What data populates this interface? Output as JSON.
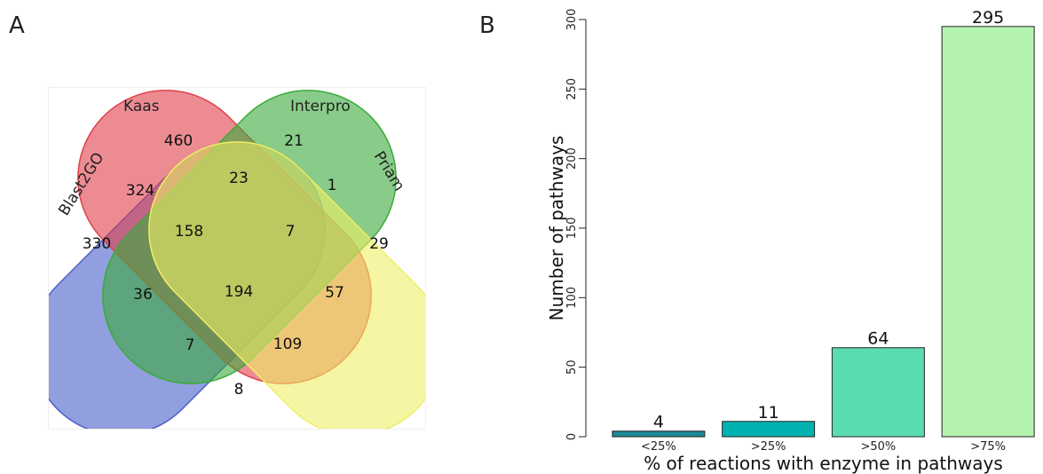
{
  "panels": {
    "a": "A",
    "b": "B"
  },
  "chart_data": [
    {
      "type": "venn",
      "sets": [
        "Blast2GO",
        "Kaas",
        "Interpro",
        "Priam"
      ],
      "set_colors": [
        "#4a5fc8",
        "#e0404a",
        "#3aaa3a",
        "#eeee66"
      ],
      "regions": [
        {
          "sets": [
            "Blast2GO"
          ],
          "value": 330
        },
        {
          "sets": [
            "Kaas"
          ],
          "value": 460
        },
        {
          "sets": [
            "Interpro"
          ],
          "value": 21
        },
        {
          "sets": [
            "Priam"
          ],
          "value": 29
        },
        {
          "sets": [
            "Blast2GO",
            "Kaas"
          ],
          "value": 324
        },
        {
          "sets": [
            "Kaas",
            "Interpro"
          ],
          "value": 23
        },
        {
          "sets": [
            "Interpro",
            "Priam"
          ],
          "value": 1
        },
        {
          "sets": [
            "Blast2GO",
            "Interpro"
          ],
          "value": 36
        },
        {
          "sets": [
            "Kaas",
            "Priam"
          ],
          "value": 57
        },
        {
          "sets": [
            "Blast2GO",
            "Priam"
          ],
          "value": 8
        },
        {
          "sets": [
            "Blast2GO",
            "Kaas",
            "Interpro"
          ],
          "value": 158
        },
        {
          "sets": [
            "Kaas",
            "Interpro",
            "Priam"
          ],
          "value": 7
        },
        {
          "sets": [
            "Blast2GO",
            "Interpro",
            "Priam"
          ],
          "value": 7
        },
        {
          "sets": [
            "Blast2GO",
            "Kaas",
            "Priam"
          ],
          "value": 109
        },
        {
          "sets": [
            "Blast2GO",
            "Kaas",
            "Interpro",
            "Priam"
          ],
          "value": 194
        }
      ]
    },
    {
      "type": "bar",
      "categories": [
        "<25%",
        ">25%",
        ">50%",
        ">75%"
      ],
      "values": [
        4,
        11,
        64,
        295
      ],
      "colors": [
        "#1a8a96",
        "#00b2b0",
        "#5adcb0",
        "#b4f2b0"
      ],
      "xlabel": "% of reactions with enzyme in pathways",
      "ylabel": "Number of pathways",
      "ylim": [
        0,
        300
      ],
      "yticks": [
        0,
        50,
        100,
        150,
        200,
        250,
        300
      ]
    }
  ]
}
